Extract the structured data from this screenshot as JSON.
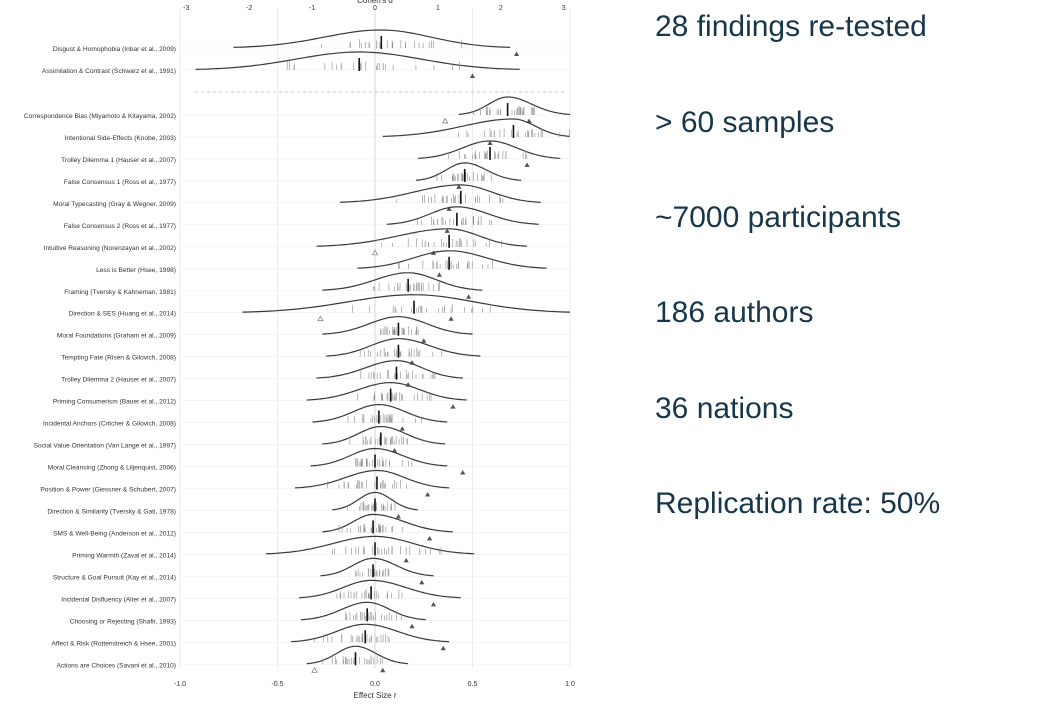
{
  "chart_data": {
    "type": "ridgeline",
    "top_axis_label": "Cohen's d",
    "top_ticks": [
      -3,
      -2,
      -1,
      0,
      1,
      2,
      3
    ],
    "top_range": [
      -3,
      3.1
    ],
    "bottom_axis_label": "Effect Size r",
    "bottom_ticks": [
      "-1.0",
      "-0.5",
      "0.0",
      "0.5",
      "1.0"
    ],
    "bottom_range": [
      -1.0,
      1.0
    ],
    "top_group": [
      {
        "label": "Disgust & Homophobia (Inbar et al., 2009)",
        "d_range": [
          -2.25,
          2.15
        ],
        "d_mean": 0.1,
        "d_original": 2.25
      },
      {
        "label": "Assimilation & Contrast (Schwarz et al., 1991)",
        "d_range": [
          -2.85,
          2.3
        ],
        "d_mean": -0.25,
        "d_original": 1.55
      }
    ],
    "findings": [
      {
        "label": "Correspondence Bias (Miyamoto & Kitayama, 2002)",
        "r_range": [
          0.43,
          1.0
        ],
        "r_mean": 0.68,
        "r_original": 0.79,
        "r_open": 0.36
      },
      {
        "label": "Intentional Side-Effects (Knobe, 2003)",
        "r_range": [
          0.04,
          1.0
        ],
        "r_mean": 0.71,
        "r_original": 0.59
      },
      {
        "label": "Trolley Dilemma 1 (Hauser et al., 2007)",
        "r_range": [
          0.22,
          0.95
        ],
        "r_mean": 0.59,
        "r_original": 0.78
      },
      {
        "label": "False Consensus 1 (Ross et al., 1977)",
        "r_range": [
          0.21,
          0.75
        ],
        "r_mean": 0.46,
        "r_original": 0.43
      },
      {
        "label": "Moral Typecasting (Gray & Wegner, 2009)",
        "r_range": [
          -0.18,
          0.85
        ],
        "r_mean": 0.44,
        "r_original": 0.38
      },
      {
        "label": "False Consensus 2 (Ross et al., 1977)",
        "r_range": [
          0.06,
          0.84
        ],
        "r_mean": 0.42,
        "r_original": 0.37
      },
      {
        "label": "Intuitive Reasoning (Norenzayan et al., 2002)",
        "r_range": [
          -0.3,
          0.78
        ],
        "r_mean": 0.38,
        "r_original": 0.3,
        "r_open": 0.0
      },
      {
        "label": "Less is Better (Hsee, 1998)",
        "r_range": [
          -0.09,
          0.88
        ],
        "r_mean": 0.38,
        "r_original": 0.33
      },
      {
        "label": "Framing (Tversky & Kahneman, 1981)",
        "r_range": [
          -0.27,
          0.55
        ],
        "r_mean": 0.17,
        "r_original": 0.48
      },
      {
        "label": "Direction & SES (Huang et al., 2014)",
        "r_range": [
          -0.68,
          1.0
        ],
        "r_mean": 0.2,
        "r_original": 0.39,
        "r_open": -0.28
      },
      {
        "label": "Moral Foundations (Graham et al., 2009)",
        "r_range": [
          -0.27,
          0.5
        ],
        "r_mean": 0.12,
        "r_original": 0.25
      },
      {
        "label": "Tempting Fate (Risen & Gilovich, 2008)",
        "r_range": [
          -0.25,
          0.54
        ],
        "r_mean": 0.12,
        "r_original": 0.19
      },
      {
        "label": "Trolley Dilemma 2 (Hauser et al., 2007)",
        "r_range": [
          -0.3,
          0.45
        ],
        "r_mean": 0.11,
        "r_original": 0.17
      },
      {
        "label": "Priming Consumerism (Bauer et al., 2012)",
        "r_range": [
          -0.35,
          0.47
        ],
        "r_mean": 0.08,
        "r_original": 0.4
      },
      {
        "label": "Incidental Anchors (Critcher & Gilovich, 2008)",
        "r_range": [
          -0.32,
          0.37
        ],
        "r_mean": 0.02,
        "r_original": 0.14
      },
      {
        "label": "Social Value Orientation (Van Lange et al., 1997)",
        "r_range": [
          -0.27,
          0.36
        ],
        "r_mean": 0.03,
        "r_original": 0.1
      },
      {
        "label": "Moral Cleansing (Zhong & Liljenquist, 2006)",
        "r_range": [
          -0.33,
          0.37
        ],
        "r_mean": 0.0,
        "r_original": 0.45
      },
      {
        "label": "Position & Power (Giessner & Schubert, 2007)",
        "r_range": [
          -0.41,
          0.38
        ],
        "r_mean": 0.01,
        "r_original": 0.27
      },
      {
        "label": "Direction & Similarity (Tversky & Gati, 1978)",
        "r_range": [
          -0.22,
          0.22
        ],
        "r_mean": 0.0,
        "r_original": 0.12
      },
      {
        "label": "SMS & Well-Being (Anderson et al., 2012)",
        "r_range": [
          -0.27,
          0.4
        ],
        "r_mean": -0.01,
        "r_original": 0.28
      },
      {
        "label": "Priming Warmth (Zaval et al., 2014)",
        "r_range": [
          -0.56,
          0.51
        ],
        "r_mean": 0.0,
        "r_original": 0.16
      },
      {
        "label": "Structure & Goal Pursuit (Kay et al., 2014)",
        "r_range": [
          -0.28,
          0.3
        ],
        "r_mean": -0.01,
        "r_original": 0.24
      },
      {
        "label": "Incidental Disfluency (Alter et al., 2007)",
        "r_range": [
          -0.39,
          0.44
        ],
        "r_mean": -0.02,
        "r_original": 0.3
      },
      {
        "label": "Choosing or Rejecting (Shafir, 1993)",
        "r_range": [
          -0.38,
          0.26
        ],
        "r_mean": -0.04,
        "r_original": 0.19
      },
      {
        "label": "Affect & Risk (Rottenstreich & Hsee, 2001)",
        "r_range": [
          -0.43,
          0.38
        ],
        "r_mean": -0.05,
        "r_original": 0.35
      },
      {
        "label": "Actions are Choices (Savani et al., 2010)",
        "r_range": [
          -0.35,
          0.17
        ],
        "r_mean": -0.1,
        "r_original": 0.04,
        "r_open": -0.31
      }
    ]
  },
  "summary_stats": [
    "28 findings re-tested",
    "> 60 samples",
    "~7000 participants",
    "186 authors",
    "36 nations",
    "Replication rate: 50%"
  ],
  "colors": {
    "text": "#17364a",
    "curve": "#3a3a3a",
    "grid": "#e6e6e6"
  }
}
